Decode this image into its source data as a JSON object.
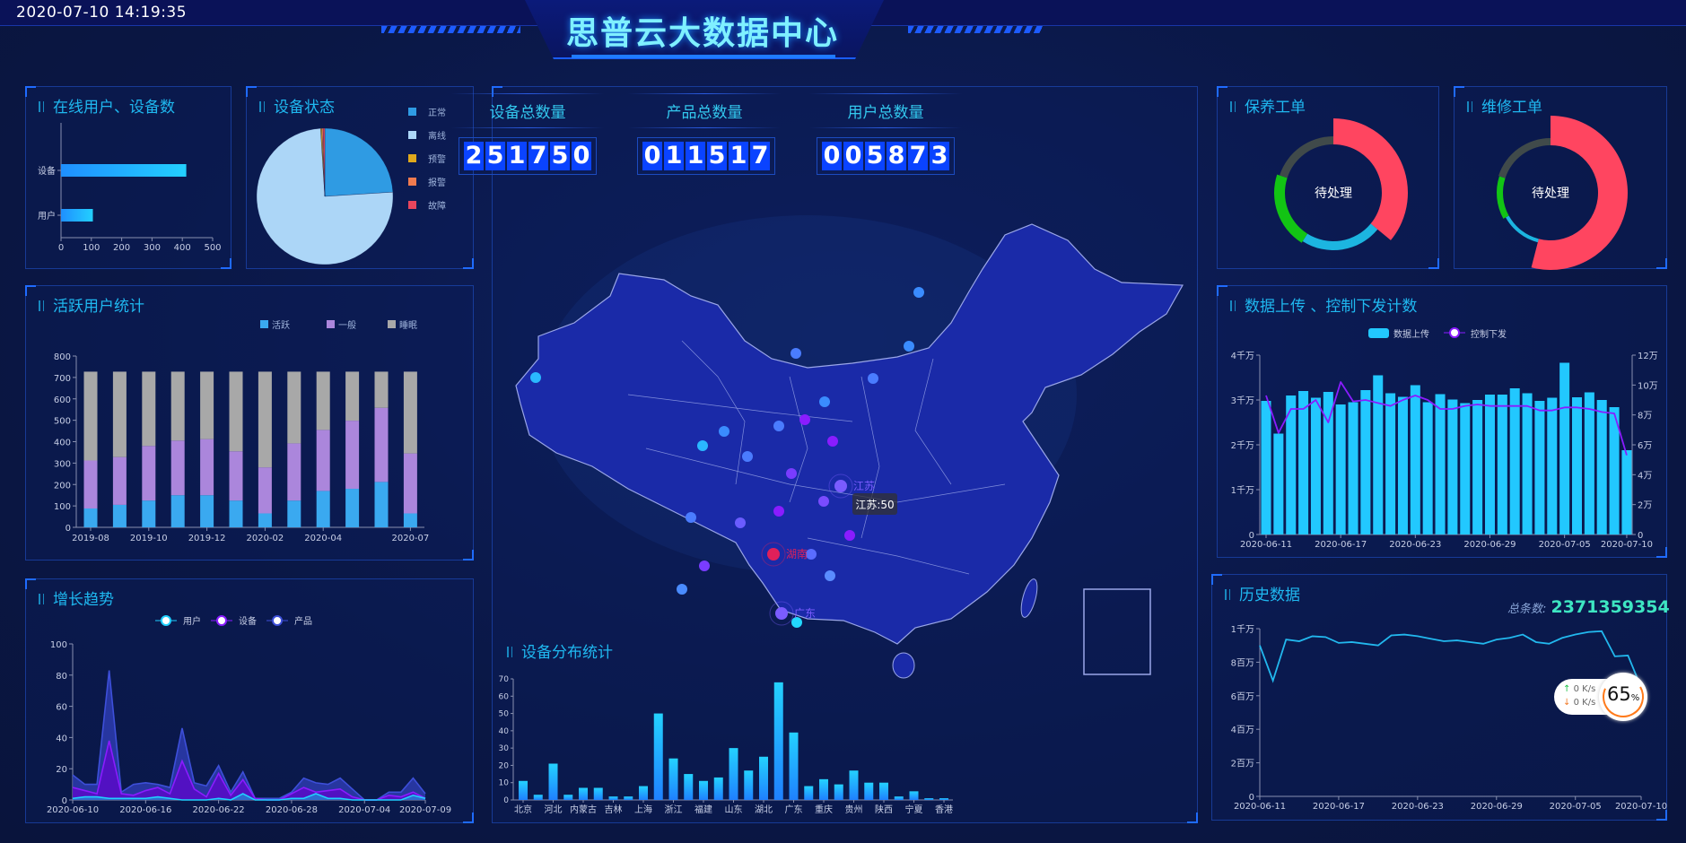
{
  "header": {
    "datetime": "2020-07-10 14:19:35",
    "title": "思普云大数据中心"
  },
  "panels": {
    "online": "在线用户、设备数",
    "status": "设备状态",
    "active": "活跃用户统计",
    "growth": "增长趋势",
    "distribution": "设备分布统计",
    "maintenance": "保养工单",
    "repair": "维修工单",
    "upload": "数据上传 、控制下发计数",
    "history": "历史数据"
  },
  "counters": [
    {
      "label": "设备总数量",
      "value": "251750"
    },
    {
      "label": "产品总数量",
      "value": "011517"
    },
    {
      "label": "用户总数量",
      "value": "005873"
    }
  ],
  "map": {
    "labels": [
      "江苏",
      "湖南",
      "广东"
    ],
    "tooltip": "江苏:50",
    "fill": "#1a2aa8",
    "border": "#9aa6e8"
  },
  "workorders": [
    {
      "center": "待处理",
      "segments": [
        {
          "value": 36,
          "color": "#ff4560"
        },
        {
          "value": 23,
          "color": "#1cb5e0"
        },
        {
          "value": 21,
          "color": "#12c414"
        },
        {
          "value": 20,
          "color": "#404a4a"
        }
      ]
    },
    {
      "center": "待处理",
      "segments": [
        {
          "value": 54,
          "color": "#ff4560"
        },
        {
          "value": 13,
          "color": "#1cb5e0"
        },
        {
          "value": 13,
          "color": "#12c414"
        },
        {
          "value": 20,
          "color": "#404a4a"
        }
      ]
    }
  ],
  "history_total": {
    "label": "总条数:",
    "value": "2371359354"
  },
  "net_widget": {
    "up": "0",
    "down": "0",
    "unit": "K/s",
    "percent": "65",
    "percent_sign": "%"
  },
  "chart_data": [
    {
      "id": "online",
      "type": "bar",
      "orientation": "horizontal",
      "categories": [
        "设备",
        "用户"
      ],
      "values": [
        413,
        105
      ],
      "xlim": [
        0,
        500
      ],
      "xticks": [
        0,
        100,
        200,
        300,
        400,
        500
      ]
    },
    {
      "id": "device_status",
      "type": "pie",
      "categories": [
        "正常",
        "离线",
        "预警",
        "报警",
        "故障"
      ],
      "values": [
        24,
        75,
        0.3,
        0.3,
        0.4
      ],
      "colors": [
        "#2f9be3",
        "#acd6f7",
        "#e0a91c",
        "#f07b4f",
        "#e8465d"
      ],
      "legend": "right"
    },
    {
      "id": "active_users",
      "type": "bar",
      "stacked": true,
      "categories": [
        "2019-08",
        "2019-09",
        "2019-10",
        "2019-11",
        "2019-12",
        "2020-01",
        "2020-02",
        "2020-03",
        "2020-04",
        "2020-05",
        "2020-06",
        "2020-07"
      ],
      "xtick_labels": [
        "2019-08",
        "",
        "2019-10",
        "",
        "2019-12",
        "",
        "2020-02",
        "",
        "2020-04",
        "",
        "",
        "2020-07"
      ],
      "series": [
        {
          "name": "活跃",
          "color": "#3aa9f0",
          "values": [
            88,
            105,
            125,
            150,
            150,
            125,
            65,
            125,
            170,
            180,
            212,
            65
          ]
        },
        {
          "name": "一般",
          "color": "#ab86dc",
          "values": [
            224,
            223,
            255,
            255,
            262,
            230,
            215,
            267,
            285,
            318,
            346,
            280
          ]
        },
        {
          "name": "睡眠",
          "color": "#a8a8a8",
          "values": [
            415,
            399,
            347,
            322,
            315,
            372,
            447,
            335,
            272,
            229,
            169,
            382
          ]
        }
      ],
      "ylim": [
        0,
        800
      ],
      "yticks": [
        0,
        100,
        200,
        300,
        400,
        500,
        600,
        700,
        800
      ],
      "legend": "top-right"
    },
    {
      "id": "growth",
      "type": "area",
      "xtick_labels": [
        "2020-06-10",
        "2020-06-16",
        "2020-06-22",
        "2020-06-28",
        "2020-07-04",
        "2020-07-09"
      ],
      "xtick_index": [
        0,
        6,
        12,
        18,
        24,
        29
      ],
      "series": [
        {
          "name": "用户",
          "color": "#20d0ff",
          "values": [
            1,
            2,
            2,
            1,
            1,
            1,
            1,
            2,
            1,
            0,
            0,
            0,
            1,
            0,
            4,
            0,
            0,
            0,
            1,
            1,
            4,
            1,
            1,
            0,
            0,
            0,
            0,
            0,
            3,
            1
          ]
        },
        {
          "name": "设备",
          "color": "#8a1cff",
          "values": [
            8,
            6,
            4,
            38,
            4,
            3,
            6,
            8,
            4,
            25,
            7,
            2,
            17,
            3,
            13,
            1,
            0,
            0,
            4,
            8,
            5,
            6,
            7,
            2,
            0,
            0,
            3,
            2,
            5,
            1
          ]
        },
        {
          "name": "产品",
          "color": "#3d4fd9",
          "values": [
            16,
            10,
            10,
            83,
            5,
            10,
            11,
            10,
            8,
            46,
            11,
            9,
            22,
            5,
            18,
            1,
            1,
            1,
            5,
            14,
            11,
            10,
            14,
            7,
            0,
            0,
            5,
            5,
            14,
            4
          ]
        }
      ],
      "ylim": [
        0,
        100
      ],
      "yticks": [
        0,
        20,
        40,
        60,
        80,
        100
      ],
      "legend": "top"
    },
    {
      "id": "device_distribution",
      "type": "bar",
      "categories": [
        "北京",
        "",
        "河北",
        "",
        "内蒙古",
        "",
        "吉林",
        "",
        "上海",
        "",
        "浙江",
        "",
        "福建",
        "",
        "山东",
        "",
        "湖北",
        "",
        "广东",
        "",
        "重庆",
        "",
        "贵州",
        "",
        "陕西",
        "",
        "宁夏",
        "",
        "香港"
      ],
      "values": [
        11,
        3,
        21,
        3,
        7,
        7,
        2,
        2,
        8,
        50,
        24,
        15,
        11,
        13,
        30,
        17,
        25,
        68,
        39,
        8,
        12,
        9,
        17,
        10,
        10,
        2,
        5,
        1,
        1
      ],
      "ylim": [
        0,
        70
      ],
      "yticks": [
        0,
        10,
        20,
        30,
        40,
        50,
        60,
        70
      ]
    },
    {
      "id": "upload_control",
      "type": "bar+line",
      "xtick_labels": [
        "2020-06-11",
        "2020-06-17",
        "2020-06-23",
        "2020-06-29",
        "2020-07-05",
        "2020-07-10"
      ],
      "xtick_index": [
        0,
        6,
        12,
        18,
        24,
        29
      ],
      "series": [
        {
          "name": "数据上传",
          "unit": "千万",
          "axis": "left",
          "color": "#22c8ff",
          "values": [
            2.98,
            2.25,
            3.1,
            3.2,
            3.05,
            3.18,
            2.9,
            2.95,
            3.22,
            3.55,
            3.15,
            3.07,
            3.33,
            2.95,
            3.13,
            3.01,
            2.93,
            3.0,
            3.12,
            3.12,
            3.26,
            3.15,
            2.98,
            3.05,
            3.83,
            3.06,
            3.17,
            3.0,
            2.84,
            1.88
          ]
        },
        {
          "name": "控制下发",
          "unit": "万",
          "axis": "right",
          "color": "#8a1cff",
          "values": [
            9.3,
            6.8,
            8.4,
            8.4,
            9.0,
            7.5,
            10.2,
            8.9,
            9.0,
            8.8,
            8.6,
            9.0,
            9.3,
            9.0,
            8.4,
            8.4,
            8.6,
            8.7,
            8.6,
            8.6,
            8.6,
            8.6,
            8.3,
            8.3,
            8.5,
            8.5,
            8.4,
            8.2,
            8.1,
            5.3
          ]
        }
      ],
      "ylim_left": [
        0,
        4
      ],
      "yticks_left": [
        "0",
        "1千万",
        "2千万",
        "3千万",
        "4千万"
      ],
      "ylim_right": [
        0,
        12
      ],
      "yticks_right": [
        "0",
        "2万",
        "4万",
        "6万",
        "8万",
        "10万",
        "12万"
      ],
      "legend": "top"
    },
    {
      "id": "history",
      "type": "line",
      "unit": "百万",
      "color": "#22b8ee",
      "xtick_labels": [
        "2020-06-11",
        "2020-06-17",
        "2020-06-23",
        "2020-06-29",
        "2020-07-05",
        "2020-07-10"
      ],
      "xtick_index": [
        0,
        6,
        12,
        18,
        24,
        29
      ],
      "values": [
        9.0,
        6.9,
        9.35,
        9.25,
        9.55,
        9.5,
        9.15,
        9.2,
        9.1,
        9.0,
        9.6,
        9.65,
        9.55,
        9.4,
        9.25,
        9.3,
        9.2,
        9.1,
        9.35,
        9.45,
        9.65,
        9.2,
        9.1,
        9.45,
        9.65,
        9.8,
        9.85,
        8.35,
        8.4,
        6.5
      ],
      "ylim": [
        0,
        10
      ],
      "yticks": [
        "0",
        "2百万",
        "4百万",
        "6百万",
        "8百万",
        "1千万"
      ]
    }
  ]
}
